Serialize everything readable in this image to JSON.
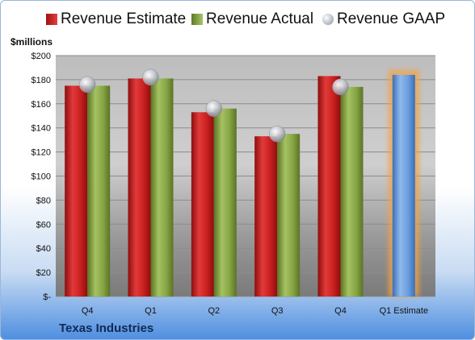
{
  "chart_data": {
    "type": "bar",
    "categories": [
      "Q4",
      "Q1",
      "Q2",
      "Q3",
      "Q4",
      "Q1 Estimate"
    ],
    "series": [
      {
        "name": "Revenue Estimate",
        "values": [
          175,
          181,
          153,
          133,
          183,
          null
        ],
        "color": "#d42a2a"
      },
      {
        "name": "Revenue Actual",
        "values": [
          175,
          181,
          156,
          135,
          174,
          null
        ],
        "color": "#8aa84a"
      },
      {
        "name": "Revenue GAAP",
        "values": [
          176,
          182,
          156,
          135,
          174,
          null
        ],
        "color": "#c8ccd4"
      },
      {
        "name": "",
        "values": [
          null,
          null,
          null,
          null,
          null,
          184
        ],
        "color": "#5b93d8"
      }
    ],
    "ylabel": "$millions",
    "ylim": [
      0,
      200
    ],
    "yticks": [
      "$-",
      "$20",
      "$40",
      "$60",
      "$80",
      "$100",
      "$120",
      "$140",
      "$160",
      "$180",
      "$200"
    ],
    "grid": true,
    "legend_placement": "top"
  },
  "footer": {
    "company": "Texas Industries"
  }
}
